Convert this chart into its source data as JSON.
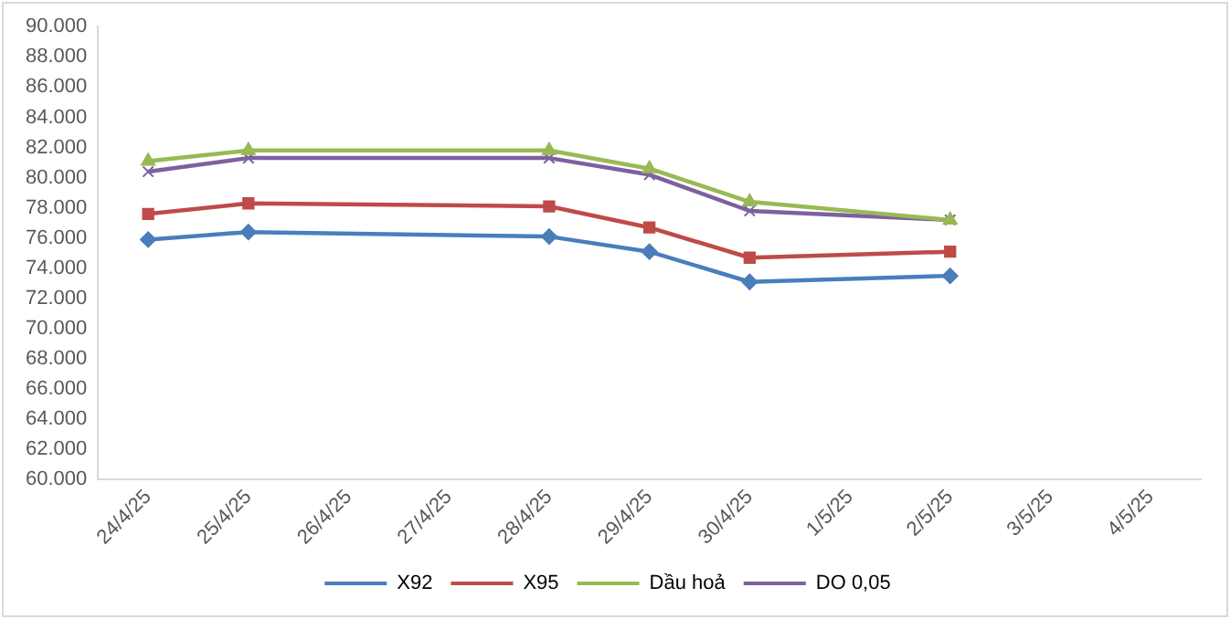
{
  "chart_data": {
    "type": "line",
    "categories": [
      "24/4/25",
      "25/4/25",
      "26/4/25",
      "27/4/25",
      "28/4/25",
      "29/4/25",
      "30/4/25",
      "1/5/25",
      "2/5/25",
      "3/5/25",
      "4/5/25"
    ],
    "series": [
      {
        "name": "X92",
        "color": "#4a7ebb",
        "marker": "diamond",
        "values": [
          75900,
          76400,
          null,
          null,
          76100,
          75100,
          73100,
          null,
          73500,
          null,
          null
        ]
      },
      {
        "name": "X95",
        "color": "#be4b48",
        "marker": "square",
        "values": [
          77600,
          78300,
          null,
          null,
          78100,
          76700,
          74700,
          null,
          75100,
          null,
          null
        ]
      },
      {
        "name": "Dầu hoả",
        "color": "#98b954",
        "marker": "triangle",
        "values": [
          81100,
          81800,
          null,
          null,
          81800,
          80600,
          78400,
          null,
          77200,
          null,
          null
        ]
      },
      {
        "name": "DO 0,05",
        "color": "#7d60a0",
        "marker": "cross",
        "values": [
          80400,
          81300,
          null,
          null,
          81300,
          80200,
          77800,
          null,
          77200,
          null,
          null
        ]
      }
    ],
    "ylim": [
      60000,
      90000
    ],
    "yticks": [
      {
        "value": 60000,
        "label": "60.000"
      },
      {
        "value": 62000,
        "label": "62.000"
      },
      {
        "value": 64000,
        "label": "64.000"
      },
      {
        "value": 66000,
        "label": "66.000"
      },
      {
        "value": 68000,
        "label": "68.000"
      },
      {
        "value": 70000,
        "label": "70.000"
      },
      {
        "value": 72000,
        "label": "72.000"
      },
      {
        "value": 74000,
        "label": "74.000"
      },
      {
        "value": 76000,
        "label": "76.000"
      },
      {
        "value": 78000,
        "label": "78.000"
      },
      {
        "value": 80000,
        "label": "80.000"
      },
      {
        "value": 82000,
        "label": "82.000"
      },
      {
        "value": 84000,
        "label": "84.000"
      },
      {
        "value": 86000,
        "label": "86.000"
      },
      {
        "value": 88000,
        "label": "88.000"
      },
      {
        "value": 90000,
        "label": "90.000"
      }
    ],
    "grid": false,
    "legend": "bottom"
  }
}
